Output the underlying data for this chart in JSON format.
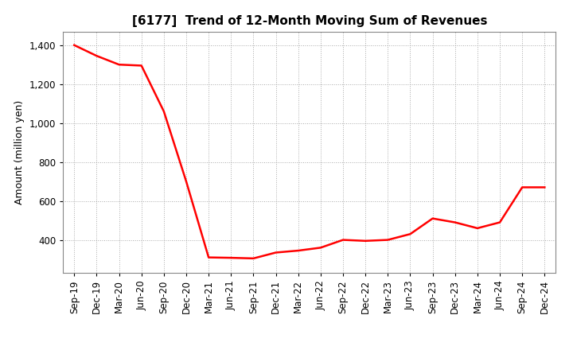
{
  "title": "[6177]  Trend of 12-Month Moving Sum of Revenues",
  "ylabel": "Amount (million yen)",
  "line_color": "#FF0000",
  "line_width": 1.8,
  "bg_color": "#FFFFFF",
  "plot_bg_color": "#FFFFFF",
  "grid_color": "#AAAAAA",
  "ylim": [
    230,
    1470
  ],
  "yticks": [
    400,
    600,
    800,
    1000,
    1200,
    1400
  ],
  "labels": [
    "Sep-19",
    "Dec-19",
    "Mar-20",
    "Jun-20",
    "Sep-20",
    "Dec-20",
    "Mar-21",
    "Jun-21",
    "Sep-21",
    "Dec-21",
    "Mar-22",
    "Jun-22",
    "Sep-22",
    "Dec-22",
    "Mar-23",
    "Jun-23",
    "Sep-23",
    "Dec-23",
    "Mar-24",
    "Jun-24",
    "Sep-24",
    "Dec-24"
  ],
  "values": [
    1400,
    1345,
    1300,
    1295,
    1060,
    700,
    310,
    308,
    305,
    335,
    345,
    360,
    400,
    395,
    400,
    430,
    510,
    490,
    460,
    490,
    670,
    670
  ],
  "title_fontsize": 11,
  "ylabel_fontsize": 9,
  "tick_fontsize": 8.5
}
